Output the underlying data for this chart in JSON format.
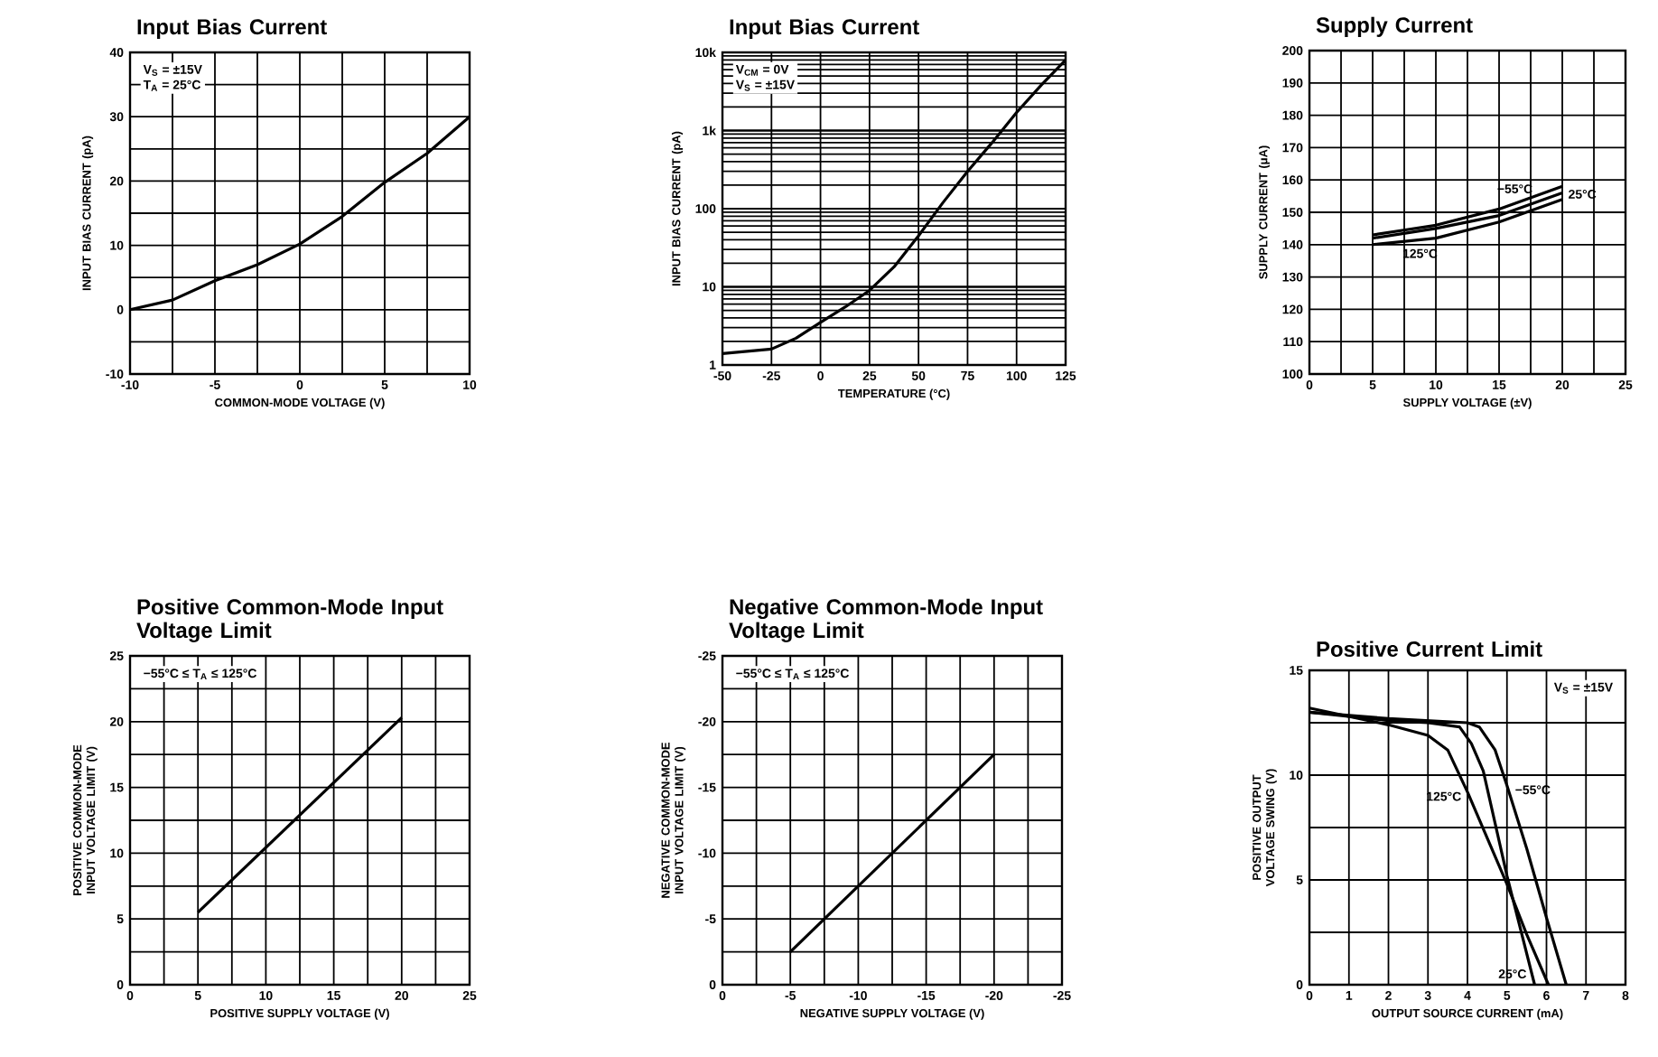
{
  "chart_data": [
    {
      "type": "line",
      "title": "Input Bias Current",
      "xlabel": "COMMON-MODE VOLTAGE (V)",
      "ylabel": "INPUT BIAS CURRENT (pA)",
      "annotations": [
        "V$_{S}$ = ±15V",
        "T$_{A}$ = 25°C"
      ],
      "xlim": [
        -10,
        10
      ],
      "ylim": [
        -10,
        40
      ],
      "xticks": [
        -10,
        -5,
        0,
        5,
        10
      ],
      "yticks": [
        -10,
        0,
        10,
        20,
        30,
        40
      ],
      "grid": true,
      "color": "#000000",
      "x": [
        -10,
        -7.5,
        -5,
        -2.5,
        0,
        2.5,
        5,
        7.5,
        10
      ],
      "values": [
        0,
        1.5,
        4.5,
        7,
        10.2,
        14.5,
        19.8,
        24.3,
        30
      ]
    },
    {
      "type": "line",
      "title": "Input Bias Current",
      "xlabel": "TEMPERATURE (°C)",
      "ylabel": "INPUT BIAS CURRENT (pA)",
      "annotations": [
        "V$_{CM}$ = 0V",
        "V$_{S}$ = ±15V"
      ],
      "log": "y",
      "xlim": [
        -50,
        125
      ],
      "ylim": [
        1,
        10000
      ],
      "xticks": [
        -50,
        -25,
        0,
        25,
        50,
        75,
        100,
        125
      ],
      "yticks": [
        1,
        10,
        100,
        {
          "value": 1000,
          "label": "1k"
        },
        {
          "value": 10000,
          "label": "10k"
        }
      ],
      "grid": true,
      "color": "#000000",
      "x": [
        -50,
        -25,
        -12.5,
        0,
        12.5,
        25,
        37.5,
        50,
        62.5,
        75,
        87.5,
        100,
        112.5,
        125
      ],
      "values": [
        1.4,
        1.6,
        2.2,
        3.5,
        5.5,
        9,
        18,
        45,
        120,
        300,
        700,
        1700,
        3800,
        8000
      ]
    },
    {
      "type": "line",
      "title": "Supply Current",
      "xlabel": "SUPPLY VOLTAGE (±V)",
      "ylabel": "SUPPLY CURRENT (μA)",
      "xlim": [
        0,
        25
      ],
      "ylim": [
        100,
        200
      ],
      "xticks": [
        0,
        5,
        10,
        15,
        20,
        25
      ],
      "yticks": [
        100,
        110,
        120,
        130,
        140,
        150,
        160,
        170,
        180,
        190,
        200
      ],
      "grid": true,
      "x": [
        5,
        10,
        15,
        20
      ],
      "series": [
        {
          "name": "−55°C",
          "color": "#000000",
          "values": [
            143,
            146,
            151,
            158
          ]
        },
        {
          "name": "25°C",
          "color": "#000000",
          "values": [
            142,
            145,
            149,
            156
          ]
        },
        {
          "name": "125°C",
          "color": "#000000",
          "values": [
            140,
            142,
            147,
            154
          ]
        }
      ]
    },
    {
      "type": "line",
      "title": "Positive Common-Mode Input Voltage Limit",
      "xlabel": "POSITIVE SUPPLY VOLTAGE (V)",
      "ylabel": "POSITIVE COMMON-MODE INPUT VOLTAGE LIMIT (V)",
      "annotations": [
        "−55°C ≤ T$_{A}$ ≤ 125°C"
      ],
      "xlim": [
        0,
        25
      ],
      "ylim": [
        0,
        25
      ],
      "xticks": [
        0,
        5,
        10,
        15,
        20,
        25
      ],
      "yticks": [
        0,
        5,
        10,
        15,
        20,
        25
      ],
      "grid": true,
      "color": "#000000",
      "x": [
        5,
        20
      ],
      "values": [
        5.5,
        20.3
      ]
    },
    {
      "type": "line",
      "title": "Negative Common-Mode Input Voltage Limit",
      "xlabel": "NEGATIVE SUPPLY VOLTAGE (V)",
      "ylabel": "NEGATIVE COMMON-MODE INPUT VOLTAGE LIMIT (V)",
      "annotations": [
        "−55°C ≤ T$_{A}$ ≤ 125°C"
      ],
      "xlim": [
        0,
        -25
      ],
      "ylim": [
        0,
        -25
      ],
      "xticks": [
        0,
        -5,
        -10,
        -15,
        -20,
        -25
      ],
      "yticks": [
        0,
        -5,
        -10,
        -15,
        -20,
        -25
      ],
      "grid": true,
      "color": "#000000",
      "x": [
        -5,
        -20
      ],
      "values": [
        -2.5,
        -17.5
      ]
    },
    {
      "type": "line",
      "title": "Positive Current Limit",
      "xlabel": "OUTPUT SOURCE CURRENT (mA)",
      "ylabel": "POSITIVE OUTPUT VOLTAGE SWING (V)",
      "annotations": [
        "V$_{S}$ = ±15V"
      ],
      "xlim": [
        0,
        8
      ],
      "ylim": [
        0,
        15
      ],
      "xticks": [
        0,
        1,
        2,
        3,
        4,
        5,
        6,
        7,
        8
      ],
      "yticks": [
        0,
        5,
        10,
        15
      ],
      "grid": true,
      "series": [
        {
          "name": "125°C",
          "color": "#000000",
          "x": [
            0,
            1,
            2,
            3,
            3.5,
            4,
            4.5,
            5,
            5.5,
            6.05
          ],
          "values": [
            13.2,
            12.8,
            12.4,
            11.9,
            11.2,
            9.2,
            7,
            4.8,
            2.4,
            0
          ]
        },
        {
          "name": "25°C",
          "color": "#000000",
          "x": [
            0,
            1,
            2,
            3,
            3.8,
            4.1,
            4.4,
            5,
            5.7
          ],
          "values": [
            13,
            12.8,
            12.6,
            12.5,
            12.3,
            11.5,
            10.2,
            5.2,
            0
          ]
        },
        {
          "name": "−55°C",
          "color": "#000000",
          "x": [
            0,
            2,
            4,
            4.3,
            4.7,
            5,
            5.5,
            6,
            6.5
          ],
          "values": [
            13,
            12.7,
            12.5,
            12.3,
            11.2,
            9.5,
            6.5,
            3.2,
            0
          ]
        }
      ]
    }
  ]
}
